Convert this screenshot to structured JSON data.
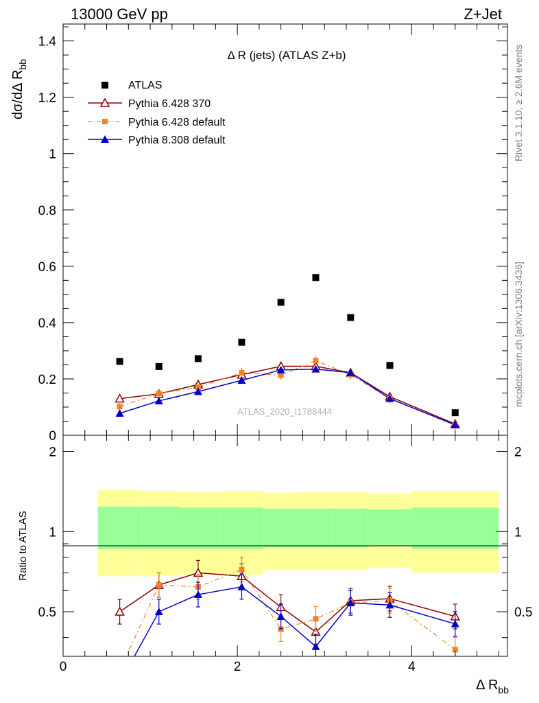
{
  "header": {
    "energy_label": "13000 GeV pp",
    "process_label": "Z+Jet"
  },
  "side_labels": {
    "rivet": "Rivet 3.1.10, ≥ 2.6M events",
    "mcplots": "mcplots.cern.ch [arXiv:1306.3436]"
  },
  "chart_data": [
    {
      "type": "scatter",
      "title": "Δ R (jets) (ATLAS Z+b)",
      "watermark": "ATLAS_2020_I1788444",
      "xlabel": "Δ R",
      "xlabel_sub": "bb",
      "ylabel": "dσ/dΔ R",
      "ylabel_sub": "bb",
      "xlim": [
        0,
        5.1
      ],
      "ylim": [
        0,
        1.46
      ],
      "yticks": [
        0,
        0.2,
        0.4,
        0.6,
        0.8,
        1,
        1.2,
        1.4
      ],
      "ytick_labels": [
        "0",
        "0.2",
        "0.4",
        "0.6",
        "0.8",
        "1",
        "1.2",
        "1.4"
      ],
      "legend_position": "top-left",
      "x": [
        0.65,
        1.1,
        1.55,
        2.05,
        2.5,
        2.9,
        3.3,
        3.75,
        4.5
      ],
      "series": [
        {
          "name": "ATLAS",
          "color": "#000000",
          "marker": "square",
          "values": [
            0.262,
            0.244,
            0.272,
            0.33,
            0.472,
            0.56,
            0.418,
            0.248,
            0.08
          ]
        },
        {
          "name": "Pythia 6.428 370",
          "color": "#8b0000",
          "marker": "open-triangle",
          "line": "solid",
          "values": [
            0.13,
            0.147,
            0.18,
            0.215,
            0.245,
            0.245,
            0.222,
            0.137,
            0.04
          ]
        },
        {
          "name": "Pythia 6.428 default",
          "color": "#f0832a",
          "marker": "square-small",
          "line": "dashdot",
          "values": [
            0.102,
            0.148,
            0.17,
            0.222,
            0.213,
            0.265,
            0.215,
            0.13,
            0.035
          ]
        },
        {
          "name": "Pythia 8.308 default",
          "color": "#0000cc",
          "marker": "triangle",
          "line": "solid",
          "values": [
            0.078,
            0.122,
            0.155,
            0.195,
            0.232,
            0.235,
            0.222,
            0.13,
            0.037
          ]
        }
      ]
    },
    {
      "type": "scatter",
      "ylabel": "Ratio to ATLAS",
      "xlim": [
        0,
        5.1
      ],
      "ylim": [
        0.34,
        2.3
      ],
      "xticks": [
        0,
        2,
        4
      ],
      "xtick_labels": [
        "0",
        "2",
        "4"
      ],
      "yticks": [
        0.5,
        1,
        2
      ],
      "ytick_labels": [
        "0.5",
        "1",
        "2"
      ],
      "uncertainty_bands": {
        "edges": [
          0.4,
          0.9,
          1.35,
          1.8,
          2.3,
          2.7,
          3.1,
          3.5,
          4.0,
          5.0
        ],
        "yellow_lo": [
          0.68,
          0.68,
          0.69,
          0.69,
          0.72,
          0.72,
          0.72,
          0.73,
          0.7
        ],
        "yellow_hi": [
          1.43,
          1.42,
          1.41,
          1.42,
          1.4,
          1.41,
          1.41,
          1.39,
          1.42
        ],
        "green_lo": [
          0.86,
          0.86,
          0.86,
          0.86,
          0.87,
          0.87,
          0.87,
          0.88,
          0.86
        ],
        "green_hi": [
          1.24,
          1.24,
          1.23,
          1.23,
          1.22,
          1.22,
          1.22,
          1.21,
          1.23
        ]
      },
      "x": [
        0.65,
        1.1,
        1.55,
        2.05,
        2.5,
        2.9,
        3.3,
        3.75,
        4.5
      ],
      "series": [
        {
          "name": "Pythia 6.428 370",
          "color": "#8b0000",
          "values": [
            0.5,
            0.63,
            0.7,
            0.68,
            0.52,
            0.42,
            0.55,
            0.56,
            0.48
          ]
        },
        {
          "name": "Pythia 6.428 default",
          "color": "#f0832a",
          "values": [
            0.3,
            0.63,
            0.62,
            0.72,
            0.43,
            0.47,
            0.54,
            0.55,
            0.36
          ]
        },
        {
          "name": "Pythia 8.308 default",
          "color": "#0000cc",
          "values": [
            0.27,
            0.5,
            0.58,
            0.62,
            0.48,
            0.37,
            0.54,
            0.53,
            0.45
          ]
        }
      ]
    }
  ]
}
